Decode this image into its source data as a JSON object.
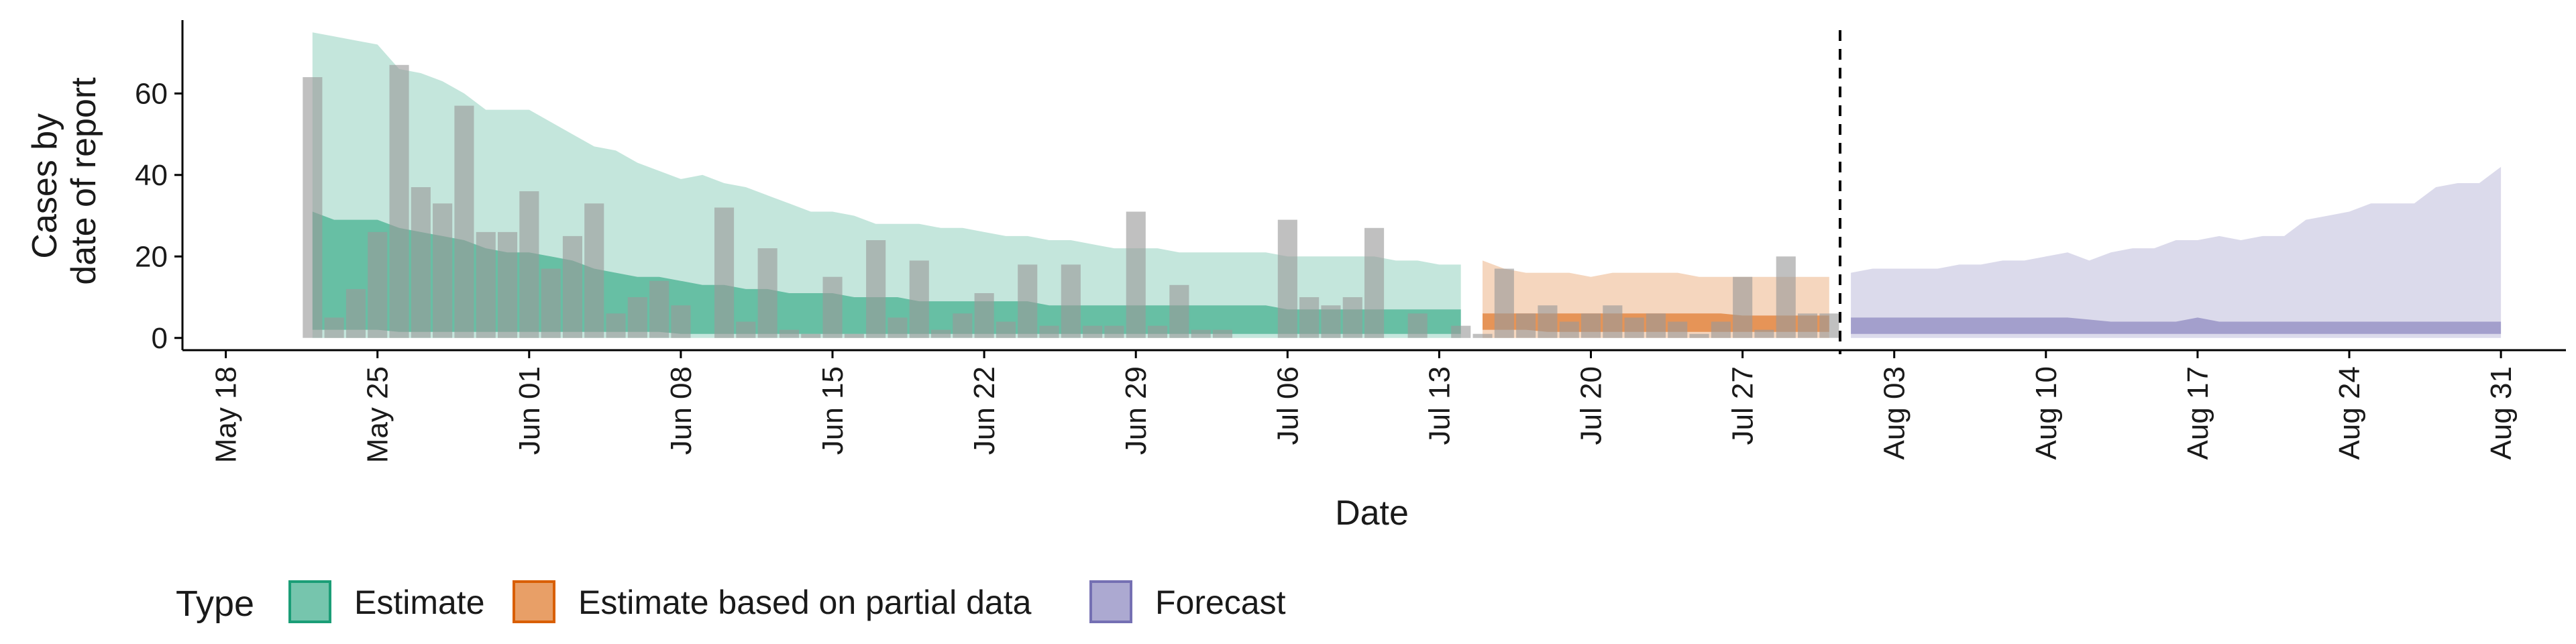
{
  "chart_data": {
    "type": "area",
    "title": "",
    "xlabel": "Date",
    "ylabel_lines": [
      "Cases by",
      "date of report"
    ],
    "ylim": [
      -3,
      78
    ],
    "xlim": [
      "2020-05-16",
      "2020-09-03"
    ],
    "y_ticks": [
      0,
      20,
      40,
      60
    ],
    "x_ticks": [
      {
        "date": "2020-05-18",
        "label": "May 18"
      },
      {
        "date": "2020-05-25",
        "label": "May 25"
      },
      {
        "date": "2020-06-01",
        "label": "Jun 01"
      },
      {
        "date": "2020-06-08",
        "label": "Jun 08"
      },
      {
        "date": "2020-06-15",
        "label": "Jun 15"
      },
      {
        "date": "2020-06-22",
        "label": "Jun 22"
      },
      {
        "date": "2020-06-29",
        "label": "Jun 29"
      },
      {
        "date": "2020-07-06",
        "label": "Jul 06"
      },
      {
        "date": "2020-07-13",
        "label": "Jul 13"
      },
      {
        "date": "2020-07-20",
        "label": "Jul 20"
      },
      {
        "date": "2020-07-27",
        "label": "Jul 27"
      },
      {
        "date": "2020-08-03",
        "label": "Aug 03"
      },
      {
        "date": "2020-08-10",
        "label": "Aug 10"
      },
      {
        "date": "2020-08-17",
        "label": "Aug 17"
      },
      {
        "date": "2020-08-24",
        "label": "Aug 24"
      },
      {
        "date": "2020-08-31",
        "label": "Aug 31"
      }
    ],
    "forecast_date": "2020-08-01",
    "grid": false,
    "legend": {
      "title": "Type",
      "placement": "bottom-left",
      "entries": [
        {
          "name": "Estimate",
          "fill": "#1b9e77",
          "border": "#1b9e77"
        },
        {
          "name": "Estimate based on partial data",
          "fill": "#d95f02",
          "border": "#d95f02"
        },
        {
          "name": "Forecast",
          "fill": "#7570b3",
          "border": "#7570b3"
        }
      ]
    },
    "bars": {
      "color": "#9a9a9a",
      "x": [
        "2020-05-22",
        "2020-05-23",
        "2020-05-24",
        "2020-05-25",
        "2020-05-26",
        "2020-05-27",
        "2020-05-28",
        "2020-05-29",
        "2020-05-30",
        "2020-05-31",
        "2020-06-01",
        "2020-06-02",
        "2020-06-03",
        "2020-06-04",
        "2020-06-05",
        "2020-06-06",
        "2020-06-07",
        "2020-06-08",
        "2020-06-09",
        "2020-06-10",
        "2020-06-11",
        "2020-06-12",
        "2020-06-13",
        "2020-06-14",
        "2020-06-15",
        "2020-06-16",
        "2020-06-17",
        "2020-06-18",
        "2020-06-19",
        "2020-06-20",
        "2020-06-21",
        "2020-06-22",
        "2020-06-23",
        "2020-06-24",
        "2020-06-25",
        "2020-06-26",
        "2020-06-27",
        "2020-06-28",
        "2020-06-29",
        "2020-06-30",
        "2020-07-01",
        "2020-07-02",
        "2020-07-03",
        "2020-07-04",
        "2020-07-05",
        "2020-07-06",
        "2020-07-07",
        "2020-07-08",
        "2020-07-09",
        "2020-07-10",
        "2020-07-11",
        "2020-07-12",
        "2020-07-13",
        "2020-07-14",
        "2020-07-15",
        "2020-07-16",
        "2020-07-17",
        "2020-07-18",
        "2020-07-19",
        "2020-07-20",
        "2020-07-21",
        "2020-07-22",
        "2020-07-23",
        "2020-07-24",
        "2020-07-25",
        "2020-07-26",
        "2020-07-27",
        "2020-07-28",
        "2020-07-29",
        "2020-07-30",
        "2020-07-31"
      ],
      "values": [
        64,
        5,
        12,
        26,
        67,
        37,
        33,
        57,
        26,
        26,
        36,
        17,
        25,
        33,
        6,
        10,
        14,
        8,
        0,
        32,
        4,
        22,
        2,
        1,
        15,
        1,
        24,
        5,
        19,
        2,
        6,
        11,
        4,
        18,
        3,
        18,
        3,
        3,
        31,
        3,
        13,
        2,
        2,
        0,
        0,
        29,
        10,
        8,
        10,
        27,
        0,
        6,
        0,
        3,
        1,
        17,
        6,
        8,
        4,
        6,
        8,
        5,
        6,
        4,
        1,
        4,
        15,
        2,
        20,
        6,
        6
      ]
    },
    "series": [
      {
        "name": "Estimate",
        "color": "#1b9e77",
        "x": [
          "2020-05-22",
          "2020-05-23",
          "2020-05-24",
          "2020-05-25",
          "2020-05-26",
          "2020-05-27",
          "2020-05-28",
          "2020-05-29",
          "2020-05-30",
          "2020-05-31",
          "2020-06-01",
          "2020-06-02",
          "2020-06-03",
          "2020-06-04",
          "2020-06-05",
          "2020-06-06",
          "2020-06-07",
          "2020-06-08",
          "2020-06-09",
          "2020-06-10",
          "2020-06-11",
          "2020-06-12",
          "2020-06-13",
          "2020-06-14",
          "2020-06-15",
          "2020-06-16",
          "2020-06-17",
          "2020-06-18",
          "2020-06-19",
          "2020-06-20",
          "2020-06-21",
          "2020-06-22",
          "2020-06-23",
          "2020-06-24",
          "2020-06-25",
          "2020-06-26",
          "2020-06-27",
          "2020-06-28",
          "2020-06-29",
          "2020-06-30",
          "2020-07-01",
          "2020-07-02",
          "2020-07-03",
          "2020-07-04",
          "2020-07-05",
          "2020-07-06",
          "2020-07-07",
          "2020-07-08",
          "2020-07-09",
          "2020-07-10",
          "2020-07-11",
          "2020-07-12",
          "2020-07-13",
          "2020-07-14"
        ],
        "lower90": [
          0,
          0,
          0,
          0,
          0,
          0,
          0,
          0,
          0,
          0,
          0,
          0,
          0,
          0,
          0,
          0,
          0,
          0,
          0,
          0,
          0,
          0,
          0,
          0,
          0,
          0,
          0,
          0,
          0,
          0,
          0,
          0,
          0,
          0,
          0,
          0,
          0,
          0,
          0,
          0,
          0,
          0,
          0,
          0,
          0,
          0,
          0,
          0,
          0,
          0,
          0,
          0,
          0,
          0
        ],
        "upper90": [
          75,
          74,
          73,
          72,
          66,
          65,
          63,
          60,
          56,
          56,
          56,
          53,
          50,
          47,
          46,
          43,
          41,
          39,
          40,
          38,
          37,
          35,
          33,
          31,
          31,
          30,
          28,
          28,
          28,
          27,
          27,
          26,
          25,
          25,
          24,
          24,
          23,
          22,
          22,
          22,
          21,
          21,
          21,
          21,
          21,
          20,
          20,
          20,
          20,
          20,
          19,
          19,
          18,
          18
        ],
        "lower50": [
          2,
          2,
          2,
          2,
          1.5,
          1.5,
          1.5,
          1.5,
          1.5,
          1.5,
          1.5,
          1.5,
          1.5,
          1.5,
          1.5,
          1.5,
          1.5,
          1,
          1,
          1,
          1,
          1,
          1,
          1,
          1,
          1,
          1,
          1,
          1,
          1,
          1,
          1,
          1,
          1,
          1,
          1,
          1,
          1,
          1,
          1,
          1,
          1,
          1,
          1,
          1,
          1,
          1,
          1,
          1,
          1,
          1,
          1,
          1,
          1
        ],
        "upper50": [
          31,
          29,
          29,
          29,
          27,
          26,
          25,
          24,
          22,
          21,
          21,
          20,
          19,
          17,
          16,
          15,
          15,
          14,
          13,
          13,
          12,
          12,
          11,
          11,
          11,
          10,
          10,
          10,
          9,
          9,
          9,
          9,
          9,
          9,
          8,
          8,
          8,
          8,
          8,
          8,
          8,
          8,
          8,
          8,
          8,
          7,
          7,
          7,
          7,
          7,
          7,
          7,
          7,
          7
        ]
      },
      {
        "name": "Estimate based on partial data",
        "color": "#d95f02",
        "x": [
          "2020-07-15",
          "2020-07-16",
          "2020-07-17",
          "2020-07-18",
          "2020-07-19",
          "2020-07-20",
          "2020-07-21",
          "2020-07-22",
          "2020-07-23",
          "2020-07-24",
          "2020-07-25",
          "2020-07-26",
          "2020-07-27",
          "2020-07-28",
          "2020-07-29",
          "2020-07-30",
          "2020-07-31"
        ],
        "lower90": [
          0,
          0,
          0,
          0,
          0,
          0,
          0,
          0,
          0,
          0,
          0,
          0,
          0,
          0,
          0,
          0,
          0
        ],
        "upper90": [
          19,
          17,
          16,
          16,
          16,
          15,
          16,
          16,
          16,
          16,
          15,
          15,
          15,
          15,
          15,
          15,
          15
        ],
        "lower50": [
          2,
          2,
          2,
          1.5,
          1.5,
          1.5,
          1.5,
          1.5,
          1.5,
          1.5,
          1.5,
          1.5,
          1.5,
          1.5,
          1.5,
          1.5,
          1.5
        ],
        "upper50": [
          6,
          6,
          6,
          6,
          6,
          6,
          6,
          6,
          6,
          6,
          6,
          6,
          5.5,
          5.5,
          5.5,
          5.5,
          5.5
        ]
      },
      {
        "name": "Forecast",
        "color": "#7570b3",
        "x": [
          "2020-08-01",
          "2020-08-02",
          "2020-08-03",
          "2020-08-04",
          "2020-08-05",
          "2020-08-06",
          "2020-08-07",
          "2020-08-08",
          "2020-08-09",
          "2020-08-10",
          "2020-08-11",
          "2020-08-12",
          "2020-08-13",
          "2020-08-14",
          "2020-08-15",
          "2020-08-16",
          "2020-08-17",
          "2020-08-18",
          "2020-08-19",
          "2020-08-20",
          "2020-08-21",
          "2020-08-22",
          "2020-08-23",
          "2020-08-24",
          "2020-08-25",
          "2020-08-26",
          "2020-08-27",
          "2020-08-28",
          "2020-08-29",
          "2020-08-30",
          "2020-08-31"
        ],
        "lower90": [
          0,
          0,
          0,
          0,
          0,
          0,
          0,
          0,
          0,
          0,
          0,
          0,
          0,
          0,
          0,
          0,
          0,
          0,
          0,
          0,
          0,
          0,
          0,
          0,
          0,
          0,
          0,
          0,
          0,
          0,
          0
        ],
        "upper90": [
          16,
          17,
          17,
          17,
          17,
          18,
          18,
          19,
          19,
          20,
          21,
          19,
          21,
          22,
          22,
          24,
          24,
          25,
          24,
          25,
          25,
          29,
          30,
          31,
          33,
          33,
          33,
          37,
          38,
          38,
          42
        ],
        "lower50": [
          1,
          1,
          1,
          1,
          1,
          1,
          1,
          1,
          1,
          1,
          1,
          1,
          1,
          1,
          1,
          1,
          1,
          1,
          1,
          1,
          1,
          1,
          1,
          1,
          1,
          1,
          1,
          1,
          1,
          1,
          1
        ],
        "upper50": [
          5,
          5,
          5,
          5,
          5,
          5,
          5,
          5,
          5,
          5,
          5,
          4.5,
          4,
          4,
          4,
          4,
          5,
          4,
          4,
          4,
          4,
          4,
          4,
          4,
          4,
          4,
          4,
          4,
          4,
          4,
          4
        ]
      }
    ]
  }
}
